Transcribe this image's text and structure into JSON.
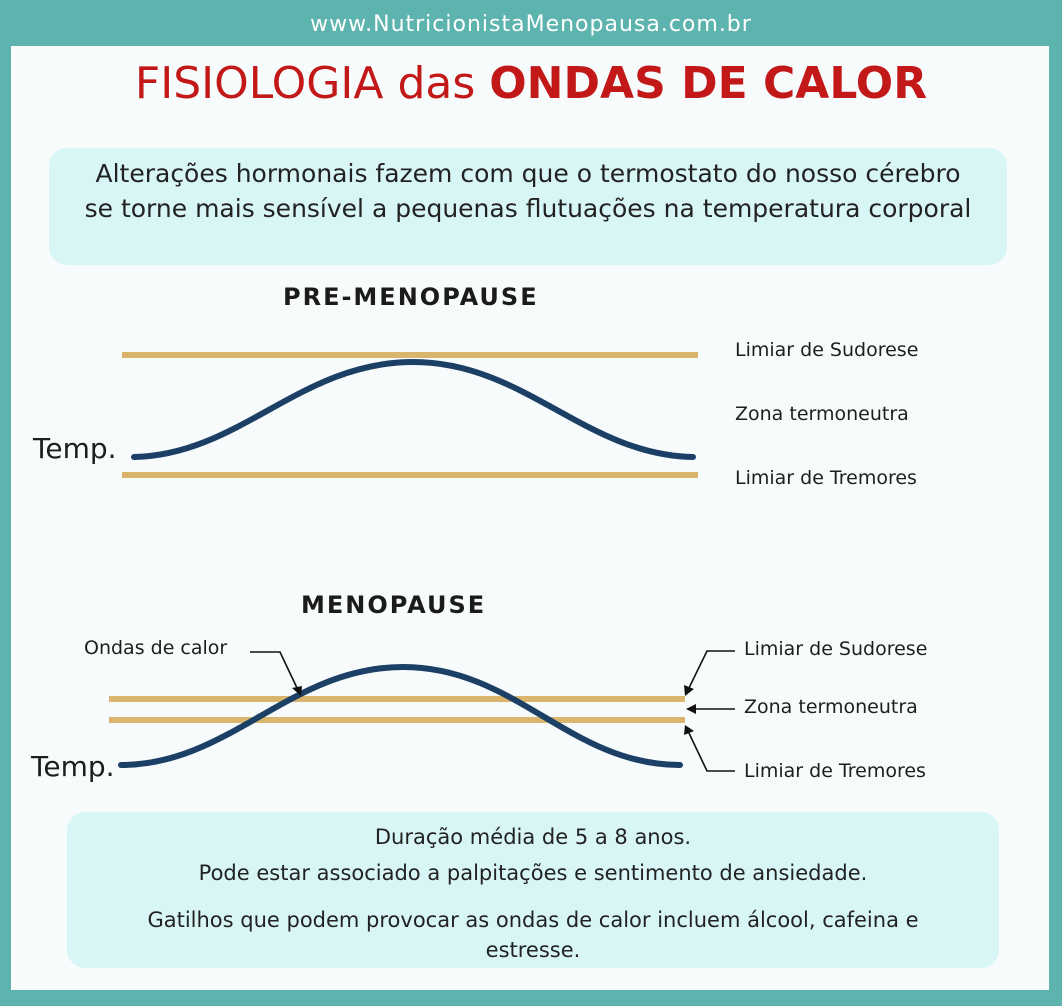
{
  "header": {
    "url": "www.NutricionistaMenopausa.com.br"
  },
  "title": {
    "part1": "FISIOLOGIA das ",
    "part2": "ONDAS DE CALOR"
  },
  "intro": {
    "text": "Alterações hormonais fazem com que o termostato do nosso cérebro se torne mais sensível a pequenas flutuações na temperatura corporal"
  },
  "pre": {
    "heading": "PRE-MENOPAUSE",
    "temp": "Temp.",
    "upper": "Limiar de Sudorese",
    "zone": "Zona termoneutra",
    "lower": "Limiar de Tremores"
  },
  "meno": {
    "heading": "MENOPAUSE",
    "temp": "Temp.",
    "hot_flash": "Ondas de calor",
    "upper": "Limiar de Sudorese",
    "zone": "Zona termoneutra",
    "lower": "Limiar de Tremores"
  },
  "footer": {
    "line1": "Duração média de 5 a 8 anos.",
    "line2": "Pode estar associado a palpitações e sentimento de ansiedade.",
    "line3": "Gatilhos que podem provocar as ondas de calor incluem álcool, cafeina e estresse."
  },
  "colors": {
    "threshold": "#d9b56e",
    "curve": "#1c3f66",
    "title": "#c21818",
    "frame": "#5db3ae"
  }
}
